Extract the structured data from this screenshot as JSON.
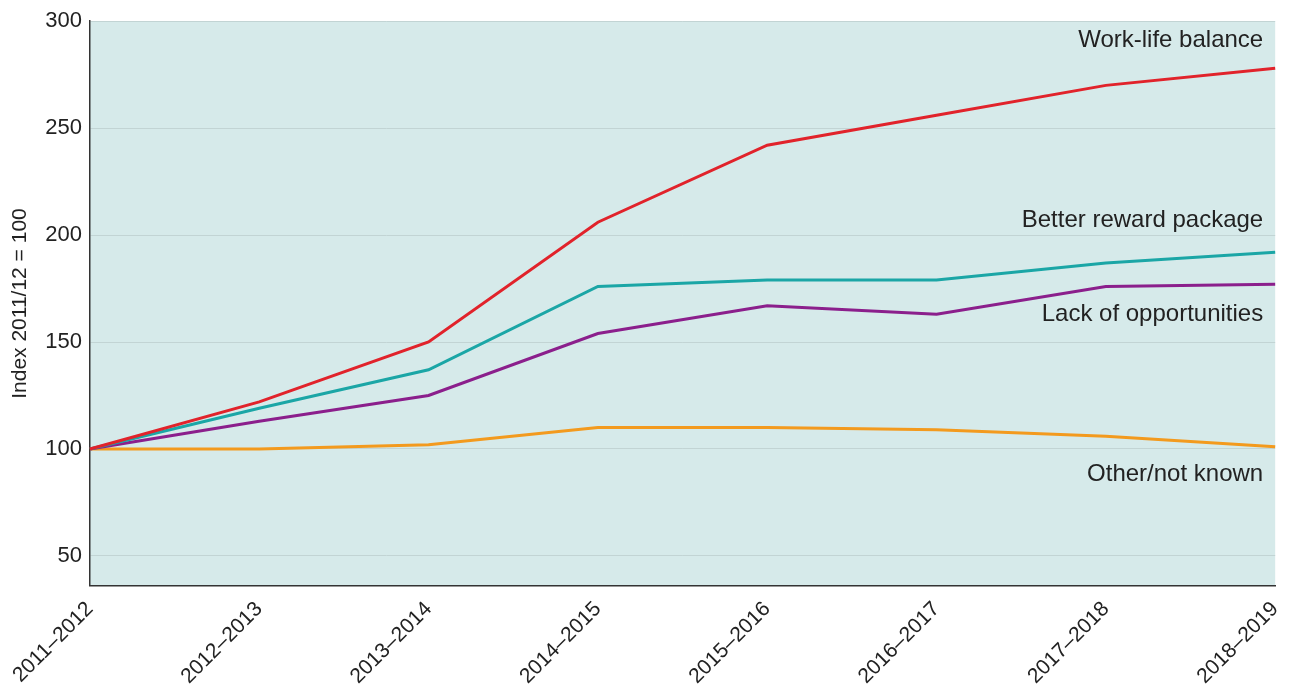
{
  "chart_data": {
    "type": "line",
    "y_label": "Index 2011/12 = 100",
    "categories": [
      "2011–2012",
      "2012–2013",
      "2013–2014",
      "2014–2015",
      "2015–2016",
      "2016–2017",
      "2017–2018",
      "2018–2019"
    ],
    "series": [
      {
        "name": "Work-life balance",
        "color": "#e1232b",
        "values": [
          100,
          122,
          150,
          206,
          242,
          256,
          270,
          278
        ]
      },
      {
        "name": "Better reward package",
        "color": "#1ba6a6",
        "values": [
          100,
          119,
          137,
          176,
          179,
          179,
          187,
          192
        ]
      },
      {
        "name": "Lack of opportunities",
        "color": "#8b1f8c",
        "values": [
          100,
          113,
          125,
          154,
          167,
          163,
          176,
          177
        ]
      },
      {
        "name": "Other/not known",
        "color": "#f39a1e",
        "values": [
          100,
          100,
          102,
          110,
          110,
          109,
          106,
          101
        ]
      }
    ],
    "ylim": [
      36,
      300
    ],
    "yticks": [
      50,
      100,
      150,
      200,
      250,
      300
    ],
    "grid": true
  }
}
